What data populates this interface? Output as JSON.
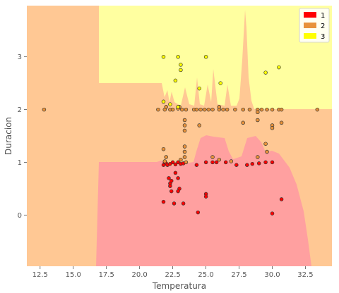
{
  "chart_data": {
    "type": "scatter",
    "title": "",
    "xlabel": "Temperatura",
    "ylabel": "Duracion",
    "xlim": [
      11.5,
      34.5
    ],
    "ylim": [
      -0.97,
      3.97
    ],
    "x_ticks": [
      "12.5",
      "15.0",
      "17.5",
      "20.0",
      "22.5",
      "25.0",
      "27.5",
      "30.0",
      "32.5"
    ],
    "x_tick_values": [
      12.5,
      15.0,
      17.5,
      20.0,
      22.5,
      25.0,
      27.5,
      30.0,
      32.5
    ],
    "y_ticks": [
      "0",
      "1",
      "2",
      "3"
    ],
    "y_tick_values": [
      0,
      1,
      2,
      3
    ],
    "grid": false,
    "legend_position": "top-right",
    "regions": [
      {
        "class": "1",
        "color": "#ffa0a0"
      },
      {
        "class": "2",
        "color": "#ffc894"
      },
      {
        "class": "3",
        "color": "#ffffa0"
      }
    ],
    "series": [
      {
        "name": "1",
        "color": "#ff0000",
        "points": [
          [
            21.8,
            0.95
          ],
          [
            21.9,
            1.0
          ],
          [
            22.0,
            0.98
          ],
          [
            22.1,
            0.95
          ],
          [
            22.3,
            0.97
          ],
          [
            22.5,
            1.0
          ],
          [
            22.7,
            0.96
          ],
          [
            22.9,
            1.0
          ],
          [
            23.1,
            0.97
          ],
          [
            23.3,
            0.98
          ],
          [
            22.2,
            0.7
          ],
          [
            22.3,
            0.6
          ],
          [
            22.4,
            0.65
          ],
          [
            22.3,
            0.55
          ],
          [
            22.9,
            0.7
          ],
          [
            23.0,
            0.5
          ],
          [
            22.9,
            0.45
          ],
          [
            22.7,
            0.8
          ],
          [
            22.4,
            0.45
          ],
          [
            21.8,
            0.25
          ],
          [
            22.6,
            0.22
          ],
          [
            23.3,
            0.22
          ],
          [
            24.4,
            0.05
          ],
          [
            25.0,
            0.4
          ],
          [
            25.0,
            0.35
          ],
          [
            24.3,
            0.95
          ],
          [
            25.0,
            1.0
          ],
          [
            25.5,
            1.0
          ],
          [
            25.8,
            1.0
          ],
          [
            26.5,
            1.0
          ],
          [
            27.3,
            0.95
          ],
          [
            28.1,
            0.95
          ],
          [
            28.5,
            0.97
          ],
          [
            29.0,
            0.98
          ],
          [
            29.5,
            1.0
          ],
          [
            30.0,
            1.0
          ],
          [
            30.0,
            0.03
          ],
          [
            30.7,
            0.3
          ]
        ]
      },
      {
        "name": "2",
        "color": "#e8923a",
        "points": [
          [
            12.8,
            2.0
          ],
          [
            21.4,
            2.0
          ],
          [
            21.9,
            2.0
          ],
          [
            22.3,
            2.0
          ],
          [
            22.5,
            2.0
          ],
          [
            22.9,
            2.02
          ],
          [
            23.2,
            2.0
          ],
          [
            23.5,
            2.0
          ],
          [
            24.1,
            2.0
          ],
          [
            24.3,
            2.0
          ],
          [
            24.6,
            2.0
          ],
          [
            24.9,
            2.0
          ],
          [
            25.2,
            2.0
          ],
          [
            25.5,
            2.0
          ],
          [
            26.0,
            2.0
          ],
          [
            26.3,
            2.0
          ],
          [
            26.6,
            2.0
          ],
          [
            27.2,
            2.0
          ],
          [
            27.8,
            2.0
          ],
          [
            28.3,
            2.0
          ],
          [
            28.9,
            2.0
          ],
          [
            29.2,
            2.0
          ],
          [
            29.6,
            2.0
          ],
          [
            30.0,
            2.0
          ],
          [
            30.5,
            2.0
          ],
          [
            30.7,
            2.0
          ],
          [
            33.4,
            2.0
          ],
          [
            26.0,
            2.05
          ],
          [
            28.9,
            1.95
          ],
          [
            23.4,
            1.8
          ],
          [
            23.4,
            1.7
          ],
          [
            23.4,
            1.6
          ],
          [
            24.5,
            1.7
          ],
          [
            27.8,
            1.75
          ],
          [
            28.9,
            1.8
          ],
          [
            30.0,
            1.7
          ],
          [
            30.0,
            1.65
          ],
          [
            30.7,
            1.75
          ],
          [
            23.4,
            1.3
          ],
          [
            23.4,
            1.2
          ],
          [
            23.4,
            1.1
          ],
          [
            21.8,
            1.25
          ],
          [
            22.0,
            1.1
          ],
          [
            21.9,
            1.02
          ],
          [
            23.1,
            1.05
          ],
          [
            23.5,
            1.0
          ],
          [
            25.5,
            1.1
          ],
          [
            26.0,
            1.05
          ],
          [
            26.9,
            1.02
          ],
          [
            28.9,
            1.1
          ],
          [
            29.6,
            1.2
          ],
          [
            29.5,
            1.35
          ],
          [
            22.0,
            2.05
          ],
          [
            23.0,
            2.05
          ]
        ]
      },
      {
        "name": "3",
        "color": "#ffff00",
        "points": [
          [
            21.8,
            3.0
          ],
          [
            22.9,
            3.0
          ],
          [
            23.1,
            2.85
          ],
          [
            23.1,
            2.75
          ],
          [
            22.7,
            2.55
          ],
          [
            25.0,
            3.0
          ],
          [
            26.1,
            2.5
          ],
          [
            29.5,
            2.7
          ],
          [
            30.5,
            2.8
          ],
          [
            24.5,
            2.4
          ],
          [
            21.8,
            2.15
          ],
          [
            22.3,
            2.1
          ],
          [
            22.9,
            2.05
          ]
        ]
      }
    ]
  }
}
